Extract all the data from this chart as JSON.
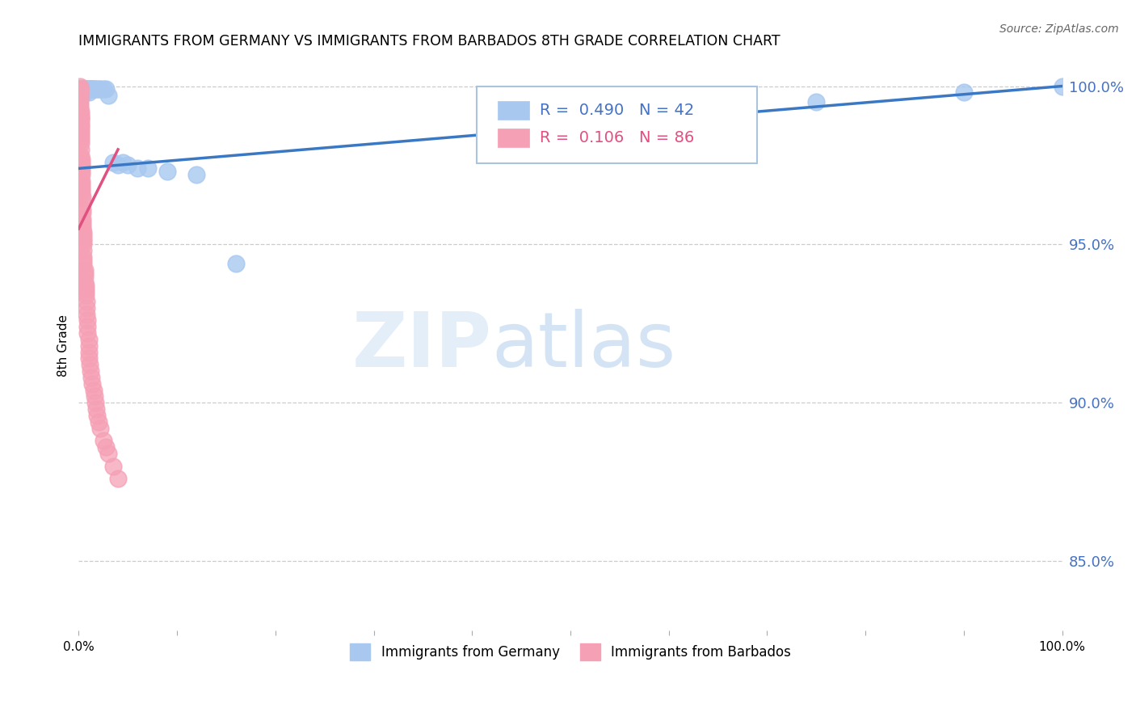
{
  "title": "IMMIGRANTS FROM GERMANY VS IMMIGRANTS FROM BARBADOS 8TH GRADE CORRELATION CHART",
  "source": "Source: ZipAtlas.com",
  "ylabel": "8th Grade",
  "right_yticks": [
    85.0,
    90.0,
    95.0,
    100.0
  ],
  "blue_R": 0.49,
  "blue_N": 42,
  "pink_R": 0.106,
  "pink_N": 86,
  "blue_color": "#a8c8f0",
  "blue_line_color": "#3b78c3",
  "pink_color": "#f5a0b5",
  "pink_line_color": "#e05080",
  "legend_blue": "Immigrants from Germany",
  "legend_pink": "Immigrants from Barbados",
  "watermark_zip": "ZIP",
  "watermark_atlas": "atlas",
  "ylim_min": 0.828,
  "ylim_max": 1.008,
  "xlim_min": 0.0,
  "xlim_max": 1.0,
  "blue_scatter_x": [
    0.001,
    0.001,
    0.002,
    0.002,
    0.003,
    0.003,
    0.004,
    0.004,
    0.005,
    0.005,
    0.006,
    0.006,
    0.007,
    0.008,
    0.009,
    0.01,
    0.01,
    0.011,
    0.012,
    0.013,
    0.014,
    0.015,
    0.016,
    0.018,
    0.02,
    0.022,
    0.025,
    0.028,
    0.03,
    0.035,
    0.04,
    0.045,
    0.05,
    0.06,
    0.07,
    0.09,
    0.12,
    0.16,
    0.6,
    0.75,
    0.9,
    1.0
  ],
  "blue_scatter_y": [
    0.999,
    0.998,
    0.999,
    0.998,
    0.999,
    0.998,
    0.999,
    0.998,
    0.999,
    0.998,
    0.999,
    0.998,
    0.999,
    0.999,
    0.999,
    0.999,
    0.998,
    0.999,
    0.999,
    0.999,
    0.999,
    0.999,
    0.999,
    0.999,
    0.999,
    0.999,
    0.999,
    0.999,
    0.997,
    0.976,
    0.975,
    0.976,
    0.975,
    0.974,
    0.974,
    0.973,
    0.972,
    0.944,
    0.99,
    0.995,
    0.998,
    1.0
  ],
  "pink_scatter_x": [
    0.001,
    0.001,
    0.001,
    0.001,
    0.001,
    0.001,
    0.001,
    0.001,
    0.001,
    0.001,
    0.002,
    0.002,
    0.002,
    0.002,
    0.002,
    0.002,
    0.002,
    0.002,
    0.002,
    0.002,
    0.002,
    0.002,
    0.002,
    0.002,
    0.003,
    0.003,
    0.003,
    0.003,
    0.003,
    0.003,
    0.003,
    0.003,
    0.003,
    0.003,
    0.003,
    0.004,
    0.004,
    0.004,
    0.004,
    0.004,
    0.004,
    0.004,
    0.004,
    0.005,
    0.005,
    0.005,
    0.005,
    0.005,
    0.005,
    0.005,
    0.005,
    0.005,
    0.006,
    0.006,
    0.006,
    0.006,
    0.007,
    0.007,
    0.007,
    0.007,
    0.008,
    0.008,
    0.008,
    0.009,
    0.009,
    0.009,
    0.01,
    0.01,
    0.01,
    0.01,
    0.011,
    0.012,
    0.013,
    0.014,
    0.015,
    0.016,
    0.017,
    0.018,
    0.019,
    0.02,
    0.022,
    0.025,
    0.028,
    0.03,
    0.035,
    0.04
  ],
  "pink_scatter_y": [
    1.0,
    0.999,
    0.999,
    0.998,
    0.998,
    0.997,
    0.996,
    0.995,
    0.994,
    0.993,
    0.992,
    0.991,
    0.99,
    0.99,
    0.989,
    0.988,
    0.987,
    0.986,
    0.985,
    0.984,
    0.983,
    0.982,
    0.98,
    0.978,
    0.977,
    0.976,
    0.975,
    0.974,
    0.973,
    0.972,
    0.97,
    0.969,
    0.968,
    0.967,
    0.966,
    0.965,
    0.963,
    0.961,
    0.96,
    0.958,
    0.957,
    0.956,
    0.955,
    0.954,
    0.953,
    0.952,
    0.951,
    0.95,
    0.948,
    0.946,
    0.945,
    0.944,
    0.942,
    0.941,
    0.94,
    0.938,
    0.937,
    0.936,
    0.935,
    0.934,
    0.932,
    0.93,
    0.928,
    0.926,
    0.924,
    0.922,
    0.92,
    0.918,
    0.916,
    0.914,
    0.912,
    0.91,
    0.908,
    0.906,
    0.904,
    0.902,
    0.9,
    0.898,
    0.896,
    0.894,
    0.892,
    0.888,
    0.886,
    0.884,
    0.88,
    0.876
  ]
}
